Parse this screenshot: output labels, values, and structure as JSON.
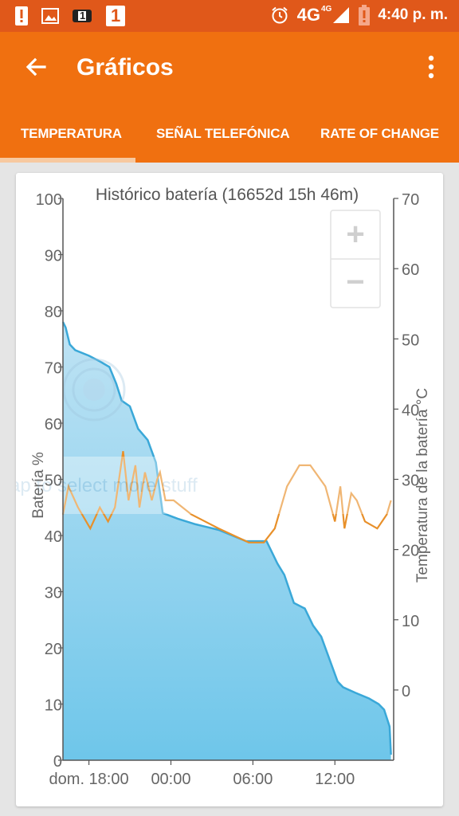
{
  "status": {
    "network": "4G",
    "network_small": "4G",
    "time": "4:40 p. m.",
    "sim_badge": "1",
    "notif_badge": "1"
  },
  "appbar": {
    "title": "Gráficos"
  },
  "tabs": [
    {
      "label": "TEMPERATURA",
      "active": true
    },
    {
      "label": "SEÑAL TELEFÓNICA",
      "active": false
    },
    {
      "label": "RATE OF CHANGE",
      "active": false
    }
  ],
  "zoom": {
    "in": "+",
    "out": "−"
  },
  "watermark": "Tap to select more stuff",
  "chart_data": {
    "type": "area",
    "title": "Histórico batería (16652d 15h 46m)",
    "ylabel": "Batería %",
    "ylabel_right": "Temperatura de la batería °C",
    "ylim": [
      0,
      100
    ],
    "ylim_right": [
      -10,
      70
    ],
    "x_ticks": [
      "dom. 18:00",
      "00:00",
      "06:00",
      "12:00"
    ],
    "y_ticks": [
      "0",
      "10",
      "20",
      "30",
      "40",
      "50",
      "60",
      "70",
      "80",
      "90",
      "100"
    ],
    "y_ticks_right": [
      "0",
      "10",
      "20",
      "30",
      "40",
      "50",
      "60",
      "70"
    ],
    "x_tick_hours": [
      18,
      24,
      30,
      36
    ],
    "x_range_hours": [
      16.1,
      40.3
    ],
    "series": [
      {
        "name": "Batería %",
        "color": "#3aa8d8",
        "x": [
          16.1,
          16.3,
          16.6,
          17.0,
          18.0,
          18.8,
          19.5,
          20.0,
          20.4,
          21.0,
          21.6,
          22.3,
          22.9,
          23.4,
          24.5,
          25.8,
          27.5,
          29.5,
          31.0,
          31.8,
          32.3,
          33.0,
          33.8,
          34.4,
          35.0,
          35.6,
          36.2,
          36.6,
          37.5,
          38.5,
          39.2,
          39.6,
          40.0,
          40.1
        ],
        "y": [
          78,
          77,
          74,
          73,
          72,
          71,
          70,
          67,
          64,
          63,
          59,
          57,
          53,
          44,
          43,
          42,
          41,
          39,
          39,
          35,
          33,
          28,
          27,
          24,
          22,
          18,
          14,
          13,
          12,
          11,
          10,
          9,
          6,
          1
        ]
      },
      {
        "name": "Temperatura de la batería °C",
        "color": "#e8902a",
        "x": [
          16.1,
          16.5,
          17.2,
          18.1,
          18.8,
          19.4,
          19.9,
          20.5,
          20.9,
          21.4,
          21.7,
          22.1,
          22.6,
          23.0,
          23.2,
          23.6,
          24.2,
          25.5,
          27.5,
          29.7,
          30.8,
          31.6,
          32.5,
          33.4,
          34.2,
          35.3,
          36.0,
          36.4,
          36.7,
          37.2,
          37.6,
          38.2,
          39.1,
          39.8,
          40.1
        ],
        "y": [
          25,
          29,
          26,
          23,
          26,
          24,
          26,
          34,
          27,
          32,
          26,
          31,
          27,
          30,
          31,
          27,
          27,
          25,
          23,
          21,
          21,
          23,
          29,
          32,
          32,
          29,
          24,
          29,
          23,
          28,
          27,
          24,
          23,
          25,
          27
        ]
      }
    ]
  }
}
